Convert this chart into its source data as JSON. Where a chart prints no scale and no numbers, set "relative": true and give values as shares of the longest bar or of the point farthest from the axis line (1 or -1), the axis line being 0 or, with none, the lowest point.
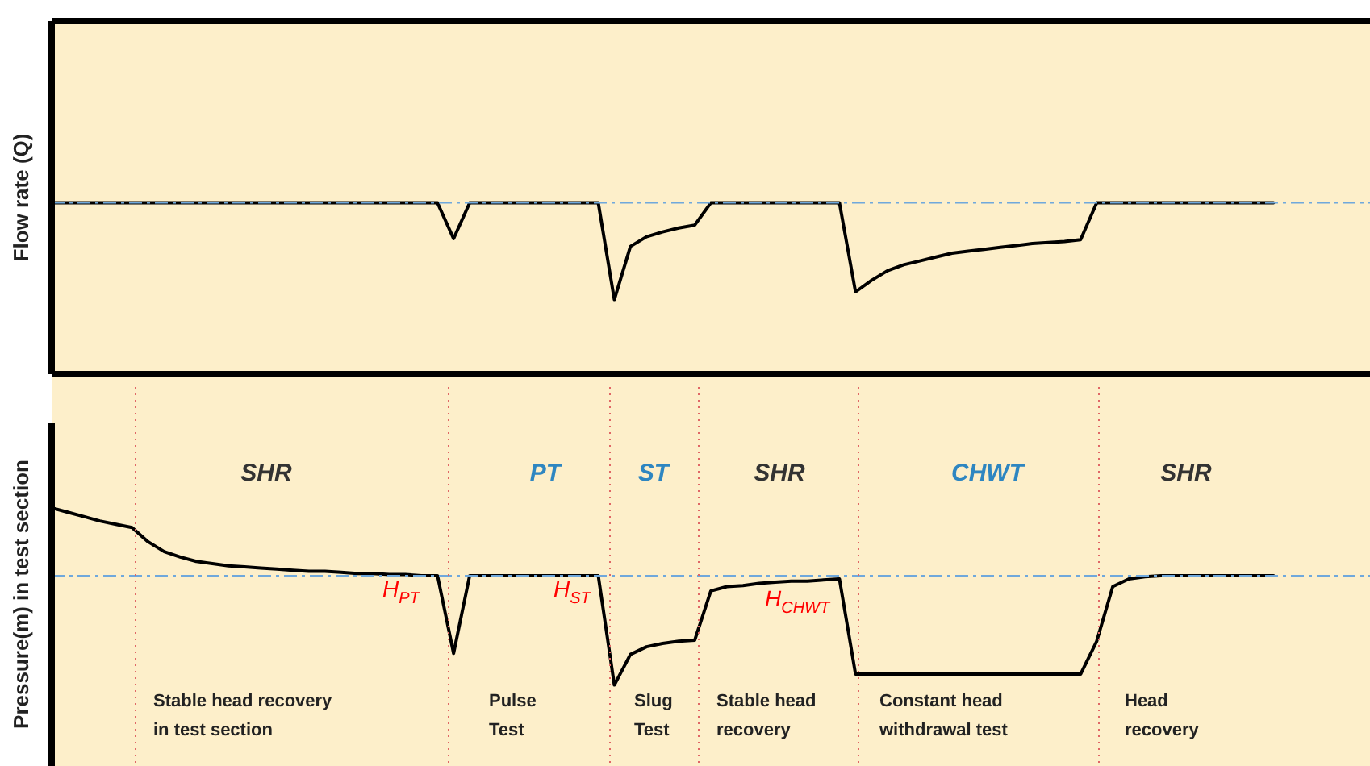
{
  "chart_data": [
    {
      "type": "line",
      "ylabel": "Flow rate (Q)",
      "relative": true,
      "grid": false,
      "legend": false,
      "tick_labels": false,
      "marker": "none",
      "line_style": "solid",
      "categories": [
        null,
        null,
        null,
        null,
        null,
        null,
        null,
        null,
        null,
        null,
        null,
        null,
        null,
        null,
        null,
        null,
        null,
        null,
        null,
        null,
        null,
        null,
        null,
        null,
        null,
        null,
        null,
        null,
        null,
        null,
        null,
        null,
        null,
        null,
        null,
        null,
        null,
        null,
        null,
        null,
        null,
        null,
        null,
        null,
        null,
        null,
        null,
        null,
        null,
        null,
        null,
        null,
        null,
        null,
        null,
        null,
        null,
        null,
        null,
        null,
        null,
        null,
        null,
        null,
        null,
        null,
        null,
        null,
        null,
        null,
        null,
        null,
        null,
        null,
        null,
        null,
        null,
        null,
        null,
        null,
        null,
        null,
        null
      ],
      "series": [
        {
          "color": "#000000",
          "values": [
            0,
            0,
            0,
            0,
            0,
            0,
            0,
            0,
            0,
            0,
            0,
            0,
            0,
            0,
            0,
            0,
            0,
            0,
            0,
            0,
            0,
            0,
            0,
            0,
            0,
            -0.37,
            0,
            0,
            0,
            0,
            0,
            0,
            0,
            0,
            0,
            -1,
            -0.45,
            -0.35,
            -0.3,
            -0.26,
            -0.23,
            0,
            0,
            0,
            0,
            0,
            0,
            0,
            0,
            0,
            -0.92,
            -0.8,
            -0.7,
            -0.64,
            -0.6,
            -0.56,
            -0.52,
            -0.5,
            -0.48,
            -0.46,
            -0.44,
            -0.42,
            -0.41,
            -0.4,
            -0.38,
            0,
            0,
            0,
            0,
            0,
            0,
            0,
            0,
            0,
            0,
            0,
            0,
            null,
            null,
            null,
            null,
            null,
            null
          ]
        }
      ],
      "ref_lines": [
        {
          "axis": "y",
          "value": 0,
          "color": "#6fa8dc",
          "line_style": "dashed"
        }
      ]
    },
    {
      "type": "line",
      "ylabel": "Pressure(m) in test section",
      "relative": true,
      "grid": false,
      "legend": false,
      "tick_labels": false,
      "marker": "none",
      "line_style": "solid",
      "categories": [
        null,
        null,
        null,
        null,
        null,
        null,
        null,
        null,
        null,
        null,
        null,
        null,
        null,
        null,
        null,
        null,
        null,
        null,
        null,
        null,
        null,
        null,
        null,
        null,
        null,
        null,
        null,
        null,
        null,
        null,
        null,
        null,
        null,
        null,
        null,
        null,
        null,
        null,
        null,
        null,
        null,
        null,
        null,
        null,
        null,
        null,
        null,
        null,
        null,
        null,
        null,
        null,
        null,
        null,
        null,
        null,
        null,
        null,
        null,
        null,
        null,
        null,
        null,
        null,
        null,
        null,
        null,
        null,
        null,
        null,
        null,
        null,
        null,
        null,
        null,
        null,
        null,
        null,
        null,
        null,
        null,
        null,
        null
      ],
      "series": [
        {
          "color": "#000000",
          "values": [
            0.62,
            0.58,
            0.54,
            0.5,
            0.47,
            0.44,
            0.31,
            0.22,
            0.17,
            0.13,
            0.11,
            0.09,
            0.08,
            0.07,
            0.06,
            0.05,
            0.04,
            0.04,
            0.03,
            0.02,
            0.02,
            0.01,
            0.01,
            0,
            0,
            -0.71,
            0,
            0,
            0,
            0,
            0,
            0,
            0,
            0,
            0,
            -1,
            -0.72,
            -0.65,
            -0.62,
            -0.6,
            -0.59,
            -0.14,
            -0.1,
            -0.09,
            -0.07,
            -0.06,
            -0.05,
            -0.05,
            -0.04,
            -0.03,
            -0.9,
            -0.9,
            -0.9,
            -0.9,
            -0.9,
            -0.9,
            -0.9,
            -0.9,
            -0.9,
            -0.9,
            -0.9,
            -0.9,
            -0.9,
            -0.9,
            -0.9,
            -0.6,
            -0.1,
            -0.03,
            -0.01,
            0,
            0,
            0,
            0,
            0,
            0,
            0,
            0,
            null,
            null,
            null,
            null,
            null,
            null
          ]
        }
      ],
      "ref_lines": [
        {
          "axis": "y",
          "value": 0,
          "color": "#6fa8dc",
          "line_style": "dashed"
        }
      ],
      "annotations": [
        "SHR",
        "PT",
        "ST",
        "SHR",
        "CHWT",
        "SHR",
        "H$_{PT}$",
        "H$_{ST}$",
        "H$_{CHWT}$",
        "Stable head recovery\nin test section",
        "Pulse\nTest",
        "Slug\nTest",
        "Stable head\nrecovery",
        "Constant head\nwithdrawal test",
        "Head\nrecovery"
      ]
    }
  ]
}
